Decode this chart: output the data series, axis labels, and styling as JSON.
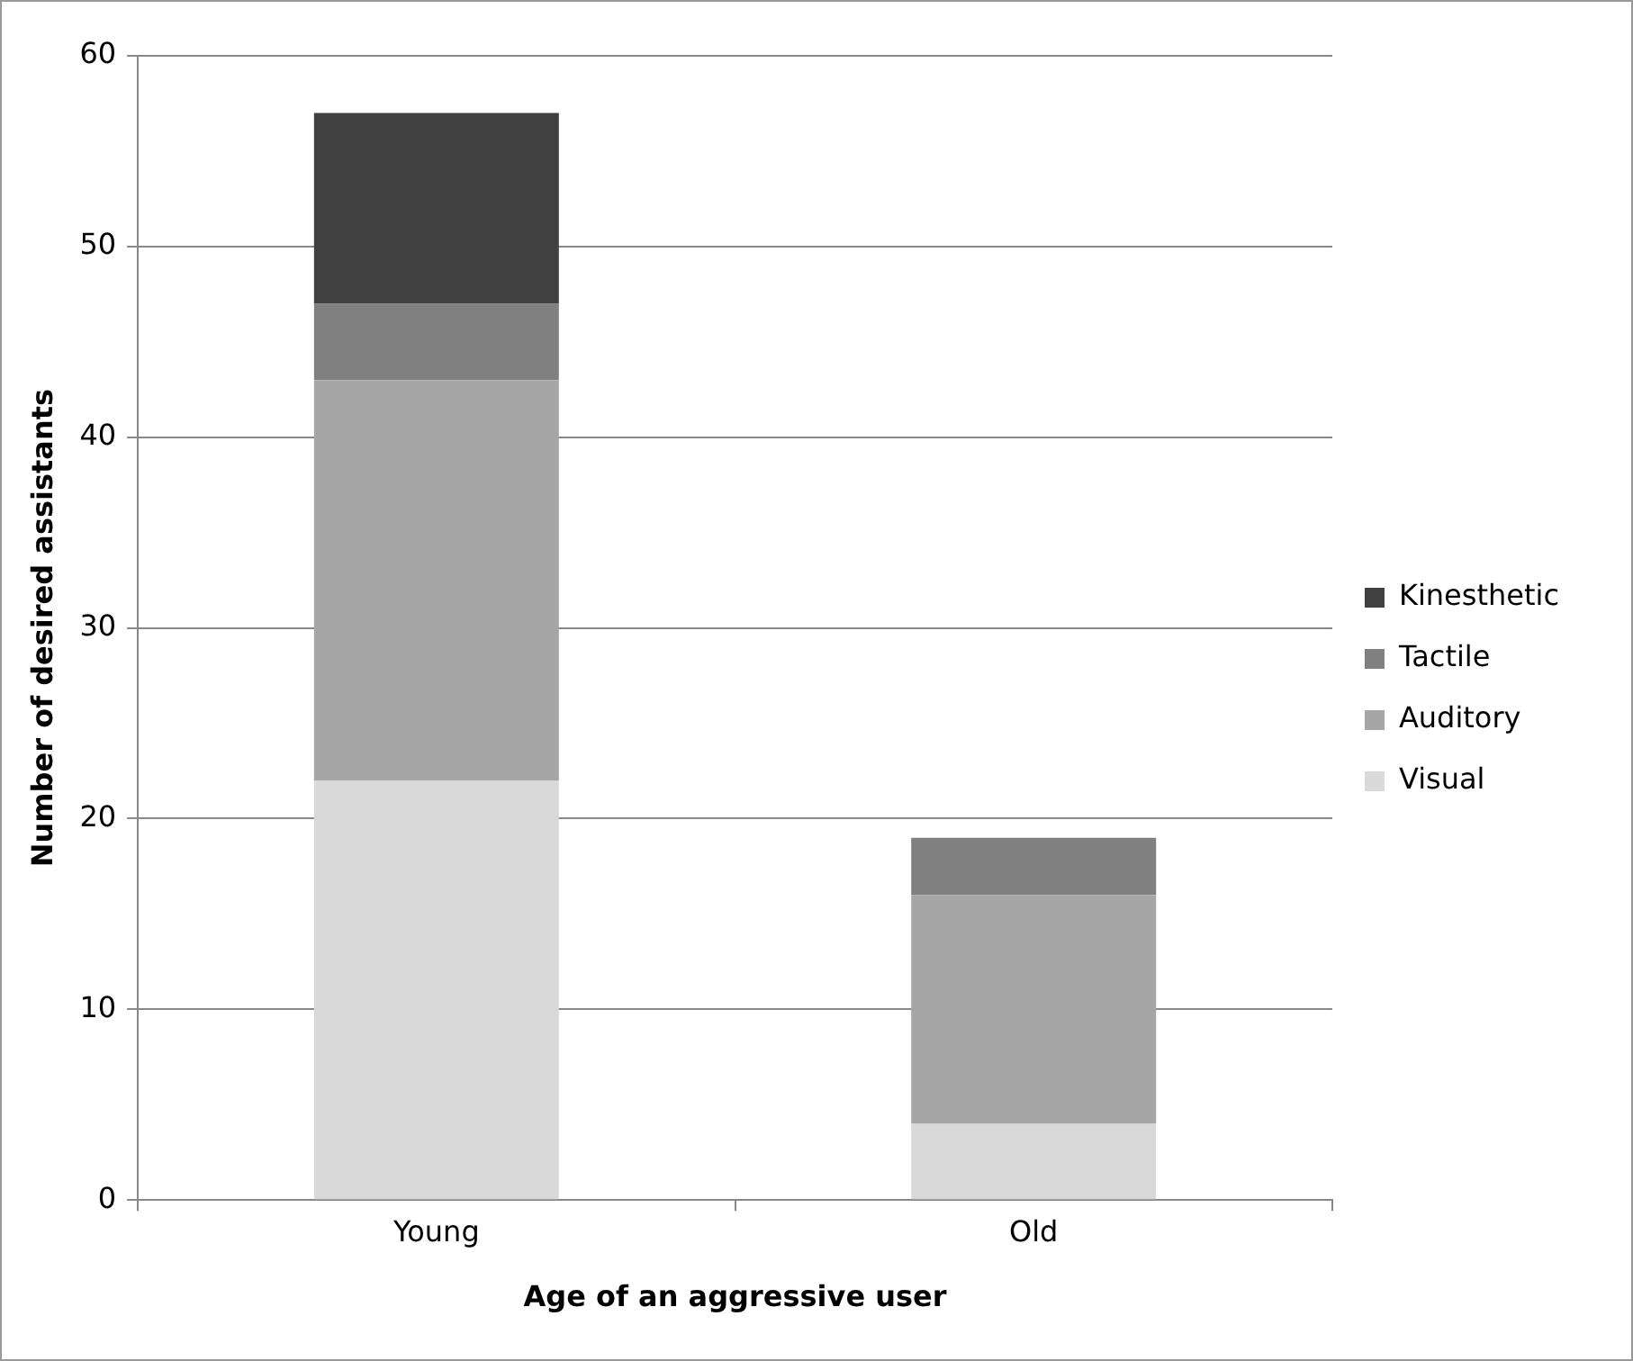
{
  "chart_data": {
    "type": "bar",
    "stacked": true,
    "xlabel": "Age of an aggressive user",
    "ylabel": "Number of desired assistants",
    "categories": [
      "Young",
      "Old"
    ],
    "series": [
      {
        "name": "Visual",
        "color": "#d9d9d9",
        "values": [
          22,
          4
        ]
      },
      {
        "name": "Auditory",
        "color": "#a6a6a6",
        "values": [
          21,
          12
        ]
      },
      {
        "name": "Tactile",
        "color": "#808080",
        "values": [
          4,
          3
        ]
      },
      {
        "name": "Kinesthetic",
        "color": "#404040",
        "values": [
          10,
          0
        ]
      }
    ],
    "ylim": [
      0,
      60
    ],
    "yticks": [
      0,
      10,
      20,
      30,
      40,
      50,
      60
    ],
    "grid": "y",
    "legend": "right"
  }
}
